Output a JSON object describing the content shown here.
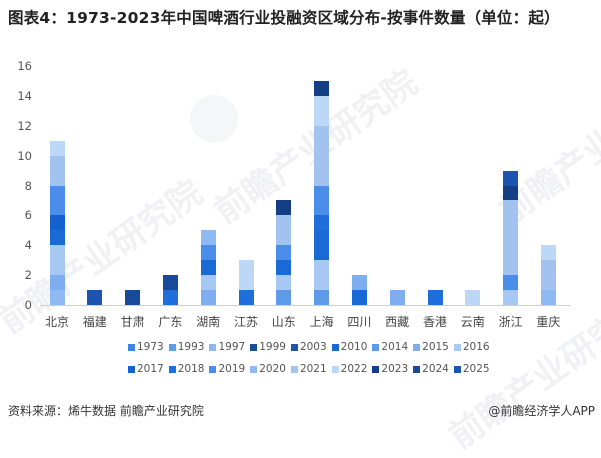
{
  "title": "图表4：1973-2023年中国啤酒行业投融资区域分布-按事件数量（单位：起）",
  "footer": {
    "source": "资料来源：烯牛数据  前瞻产业研究院",
    "credit": "@前瞻经济学人APP"
  },
  "watermark": {
    "text": "前瞻产业研究院"
  },
  "colors": {
    "1973": "#3a86e4",
    "1993": "#5d9eea",
    "1997": "#8bb8f0",
    "1999": "#1a4f9c",
    "2003": "#1d56a8",
    "2010": "#1a6ad6",
    "2014": "#5d9aea",
    "2015": "#7eaef0",
    "2016": "#a6c8f3",
    "2017": "#1460cf",
    "2018": "#1e6fdc",
    "2019": "#4a8eea",
    "2020": "#8fb9f2",
    "2021": "#a2c3ef",
    "2022": "#bdd7f7",
    "2023": "#143f85",
    "2024": "#174a98",
    "2025": "#1b55b0"
  },
  "chart_data": {
    "type": "bar",
    "stacked": true,
    "title": "图表4：1973-2023年中国啤酒行业投融资区域分布-按事件数量（单位：起）",
    "xlabel": "",
    "ylabel": "",
    "ylim": [
      0,
      16
    ],
    "yticks": [
      0,
      2,
      4,
      6,
      8,
      10,
      12,
      14,
      16
    ],
    "grid": false,
    "legend_position": "bottom",
    "categories": [
      "北京",
      "福建",
      "甘肃",
      "广东",
      "湖南",
      "江苏",
      "山东",
      "上海",
      "四川",
      "西藏",
      "香港",
      "云南",
      "浙江",
      "重庆"
    ],
    "legend": [
      "1973",
      "1993",
      "1997",
      "1999",
      "2003",
      "2010",
      "2014",
      "2015",
      "2016",
      "2017",
      "2018",
      "2019",
      "2020",
      "2021",
      "2022",
      "2023",
      "2024",
      "2025"
    ],
    "stacks": [
      {
        "category": "北京",
        "total": 11,
        "segments": [
          [
            "2020",
            1
          ],
          [
            "2015",
            1
          ],
          [
            "2016",
            2
          ],
          [
            "2010",
            1
          ],
          [
            "2017",
            1
          ],
          [
            "2019",
            2
          ],
          [
            "2021",
            2
          ],
          [
            "2022",
            1
          ]
        ]
      },
      {
        "category": "福建",
        "total": 1,
        "segments": [
          [
            "2025",
            1
          ]
        ]
      },
      {
        "category": "甘肃",
        "total": 1,
        "segments": [
          [
            "2024",
            1
          ]
        ]
      },
      {
        "category": "广东",
        "total": 2,
        "segments": [
          [
            "2018",
            1
          ],
          [
            "2024",
            1
          ]
        ]
      },
      {
        "category": "湖南",
        "total": 5,
        "segments": [
          [
            "2015",
            1
          ],
          [
            "2016",
            1
          ],
          [
            "2010",
            1
          ],
          [
            "2019",
            1
          ],
          [
            "2020",
            1
          ]
        ]
      },
      {
        "category": "江苏",
        "total": 3,
        "segments": [
          [
            "2018",
            1
          ],
          [
            "2022",
            2
          ]
        ]
      },
      {
        "category": "山东",
        "total": 7,
        "segments": [
          [
            "2014",
            1
          ],
          [
            "2016",
            1
          ],
          [
            "2010",
            1
          ],
          [
            "2019",
            1
          ],
          [
            "2021",
            2
          ],
          [
            "2023",
            1
          ]
        ]
      },
      {
        "category": "上海",
        "total": 15,
        "segments": [
          [
            "2014",
            1
          ],
          [
            "2016",
            2
          ],
          [
            "2010",
            2
          ],
          [
            "2018",
            1
          ],
          [
            "2019",
            2
          ],
          [
            "2021",
            4
          ],
          [
            "2022",
            2
          ],
          [
            "2023",
            1
          ]
        ]
      },
      {
        "category": "四川",
        "total": 2,
        "segments": [
          [
            "2010",
            1
          ],
          [
            "2015",
            1
          ]
        ]
      },
      {
        "category": "西藏",
        "total": 1,
        "segments": [
          [
            "2015",
            1
          ]
        ]
      },
      {
        "category": "香港",
        "total": 1,
        "segments": [
          [
            "2018",
            1
          ]
        ]
      },
      {
        "category": "云南",
        "total": 1,
        "segments": [
          [
            "2022",
            1
          ]
        ]
      },
      {
        "category": "浙江",
        "total": 9,
        "segments": [
          [
            "2016",
            1
          ],
          [
            "2019",
            1
          ],
          [
            "2021",
            5
          ],
          [
            "2023",
            1
          ],
          [
            "2025",
            1
          ]
        ]
      },
      {
        "category": "重庆",
        "total": 4,
        "segments": [
          [
            "2020",
            1
          ],
          [
            "2021",
            2
          ],
          [
            "2022",
            1
          ]
        ]
      }
    ],
    "totals": [
      11,
      1,
      1,
      2,
      5,
      3,
      7,
      15,
      2,
      1,
      1,
      1,
      9,
      4
    ]
  }
}
